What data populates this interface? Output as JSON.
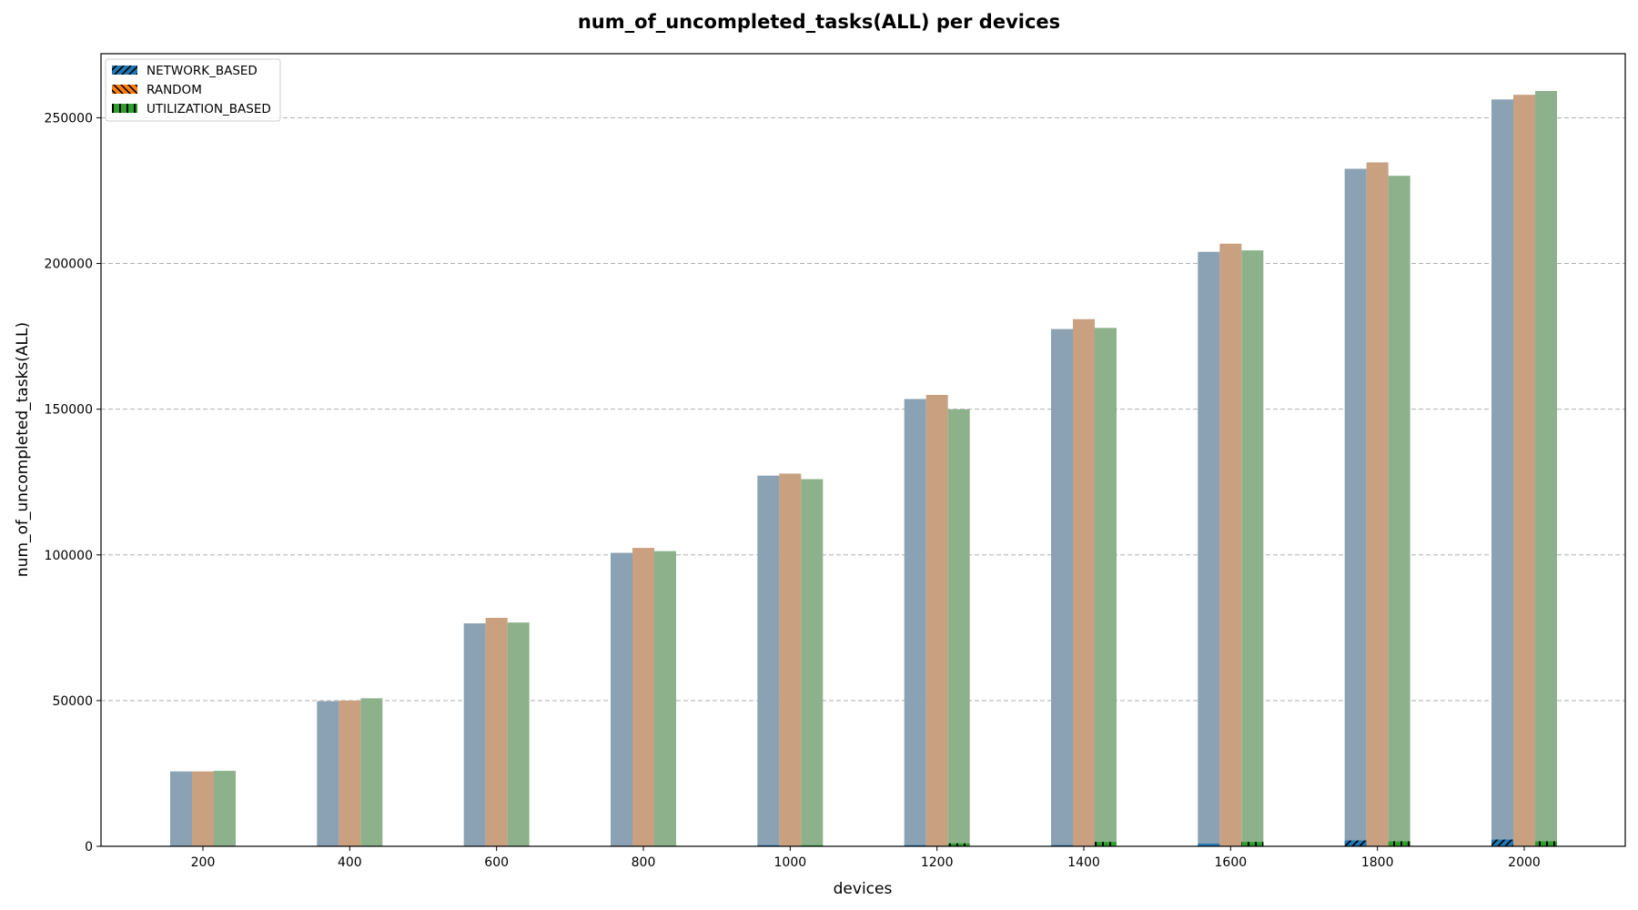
{
  "chart_data": {
    "type": "bar",
    "title": "num_of_uncompleted_tasks(ALL) per devices",
    "xlabel": "devices",
    "ylabel": "num_of_uncompleted_tasks(ALL)",
    "categories": [
      "200",
      "400",
      "600",
      "800",
      "1000",
      "1200",
      "1400",
      "1600",
      "1800",
      "2000"
    ],
    "ylim": [
      0,
      272000
    ],
    "yticks": [
      0,
      50000,
      100000,
      150000,
      200000,
      250000
    ],
    "ytick_labels": [
      "0",
      "50000",
      "100000",
      "150000",
      "200000",
      "250000"
    ],
    "grid": true,
    "legend_position": "top-left",
    "series": [
      {
        "name": "NETWORK_BASED",
        "color": "#1f77b4",
        "faded_color": "#8aa2b4",
        "hatch": "/",
        "values": [
          25700,
          49800,
          76500,
          100700,
          127200,
          153500,
          177500,
          204000,
          232500,
          256300
        ],
        "overlay_values": [
          0,
          0,
          0,
          0,
          200,
          300,
          400,
          900,
          2000,
          2300
        ]
      },
      {
        "name": "RANDOM",
        "color": "#ff7f0e",
        "faded_color": "#c9a080",
        "hatch": "\\",
        "values": [
          25700,
          50000,
          78400,
          102400,
          127900,
          154900,
          180900,
          206800,
          234700,
          257900
        ],
        "overlay_values": [
          0,
          0,
          0,
          0,
          0,
          0,
          0,
          0,
          0,
          0
        ]
      },
      {
        "name": "UTILIZATION_BASED",
        "color": "#2ca02c",
        "faded_color": "#8db28b",
        "hatch": "|",
        "values": [
          25900,
          50800,
          76800,
          101300,
          126000,
          150000,
          177900,
          204500,
          230100,
          259200
        ],
        "overlay_values": [
          0,
          0,
          0,
          0,
          300,
          1000,
          1500,
          1500,
          1700,
          1700
        ]
      }
    ]
  }
}
